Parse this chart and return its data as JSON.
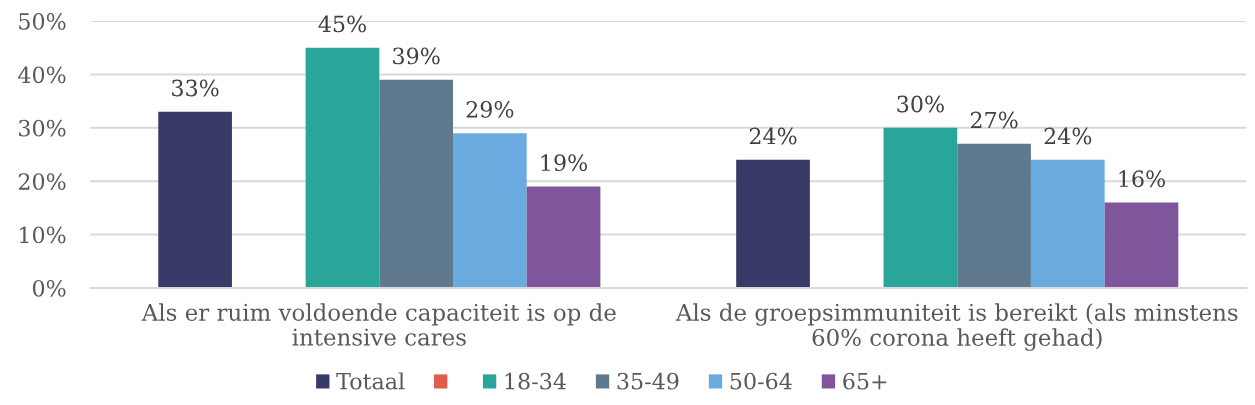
{
  "chart_data": {
    "type": "bar",
    "categories": [
      "Als er ruim voldoende capaciteit is op de intensive cares",
      "Als de groepsimmuniteit is bereikt (als minstens 60% corona heeft gehad)"
    ],
    "series": [
      {
        "name": "Totaal",
        "color": "#383a67",
        "values": [
          33,
          24
        ],
        "value_labels": [
          "33%",
          "24%"
        ]
      },
      {
        "color": "#e05c4e",
        "values": [
          null,
          null
        ]
      },
      {
        "name": "18-34",
        "color": "#2aa59a",
        "values": [
          45,
          30
        ],
        "value_labels": [
          "45%",
          "30%"
        ]
      },
      {
        "name": "35-49",
        "color": "#5f7a8f",
        "values": [
          39,
          27
        ],
        "value_labels": [
          "39%",
          "27%"
        ]
      },
      {
        "name": "50-64",
        "color": "#6aabdf",
        "values": [
          29,
          24
        ],
        "value_labels": [
          "29%",
          "24%"
        ]
      },
      {
        "name": "65+",
        "color": "#7f559c",
        "values": [
          19,
          16
        ],
        "value_labels": [
          "19%",
          "16%"
        ]
      }
    ],
    "ylim": [
      0,
      50
    ],
    "yticks": [
      {
        "value": 0,
        "label": "0%"
      },
      {
        "value": 10,
        "label": "10%"
      },
      {
        "value": 20,
        "label": "20%"
      },
      {
        "value": 30,
        "label": "30%"
      },
      {
        "value": 40,
        "label": "40%"
      },
      {
        "value": 50,
        "label": "50%"
      }
    ],
    "grid": "y",
    "legend": "bottom"
  }
}
